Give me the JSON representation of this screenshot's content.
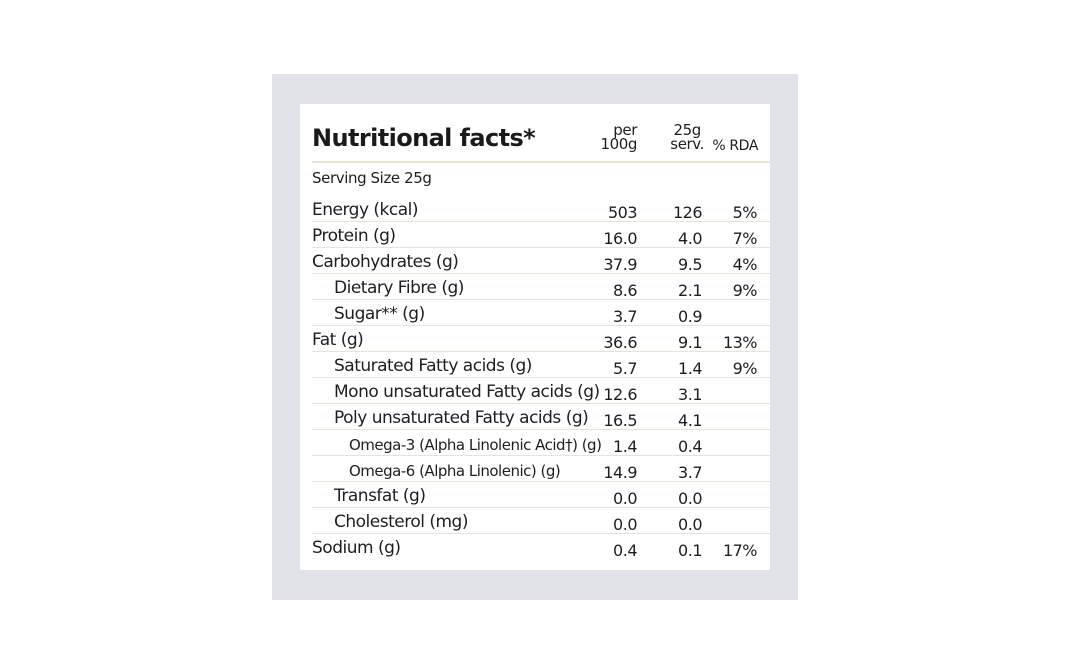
{
  "title": "Nutritional facts*",
  "headers": {
    "per100_l1": "per",
    "per100_l2": "100g",
    "serv_l1": "25g",
    "serv_l2": "serv.",
    "rda": "% RDA"
  },
  "serving_size": "Serving Size 25g",
  "rows": [
    {
      "name": "Energy (kcal)",
      "per100": "503",
      "serving": "126",
      "rda": "5%",
      "indent": 0
    },
    {
      "name": "Protein (g)",
      "per100": "16.0",
      "serving": "4.0",
      "rda": "7%",
      "indent": 0
    },
    {
      "name": "Carbohydrates (g)",
      "per100": "37.9",
      "serving": "9.5",
      "rda": "4%",
      "indent": 0
    },
    {
      "name": "Dietary Fibre (g)",
      "per100": "8.6",
      "serving": "2.1",
      "rda": "9%",
      "indent": 1
    },
    {
      "name": "Sugar** (g)",
      "per100": "3.7",
      "serving": "0.9",
      "rda": "",
      "indent": 1
    },
    {
      "name": "Fat (g)",
      "per100": "36.6",
      "serving": "9.1",
      "rda": "13%",
      "indent": 0
    },
    {
      "name": "Saturated Fatty acids (g)",
      "per100": "5.7",
      "serving": "1.4",
      "rda": "9%",
      "indent": 1
    },
    {
      "name": "Mono unsaturated Fatty acids (g)",
      "per100": "12.6",
      "serving": "3.1",
      "rda": "",
      "indent": 1
    },
    {
      "name": "Poly unsaturated Fatty acids (g)",
      "per100": "16.5",
      "serving": "4.1",
      "rda": "",
      "indent": 1
    },
    {
      "name": "Omega-3 (Alpha Linolenic Acid†) (g)",
      "per100": "1.4",
      "serving": "0.4",
      "rda": "",
      "indent": 2
    },
    {
      "name": "Omega-6 (Alpha Linolenic) (g)",
      "per100": "14.9",
      "serving": "3.7",
      "rda": "",
      "indent": 2
    },
    {
      "name": "Transfat (g)",
      "per100": "0.0",
      "serving": "0.0",
      "rda": "",
      "indent": 1
    },
    {
      "name": "Cholesterol (mg)",
      "per100": "0.0",
      "serving": "0.0",
      "rda": "",
      "indent": 1
    },
    {
      "name": "Sodium (g)",
      "per100": "0.4",
      "serving": "0.1",
      "rda": "17%",
      "indent": 0
    }
  ]
}
